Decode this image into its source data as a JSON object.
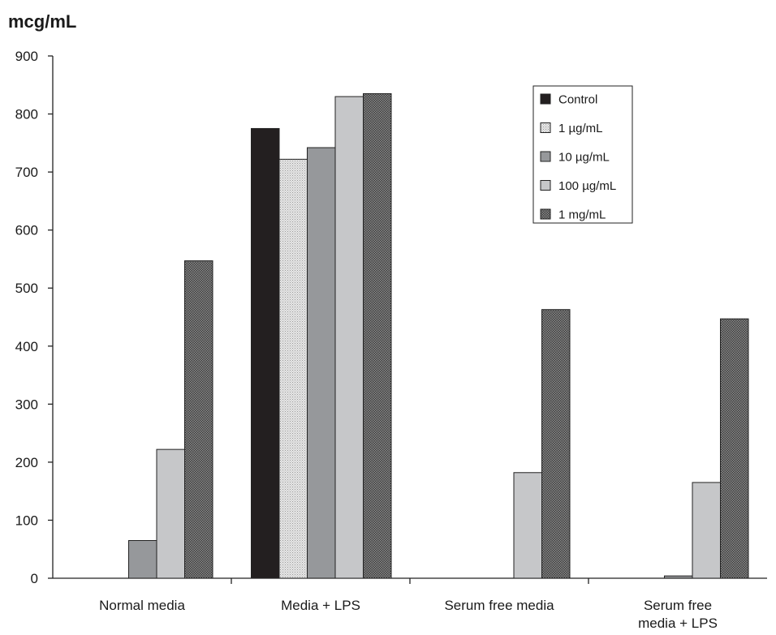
{
  "chart_data": {
    "type": "bar",
    "ylabel": "mcg/mL",
    "ylim": [
      0,
      900
    ],
    "yticks": [
      0,
      100,
      200,
      300,
      400,
      500,
      600,
      700,
      800,
      900
    ],
    "categories": [
      [
        "Normal media"
      ],
      [
        "Media + LPS"
      ],
      [
        "Serum free media"
      ],
      [
        "Serum free",
        "media + LPS"
      ]
    ],
    "series": [
      {
        "name": "Control",
        "color": "#231f20",
        "pattern": "solid",
        "values": [
          0,
          775,
          0,
          0
        ]
      },
      {
        "name": "1 µg/mL",
        "color": "#cfcfcf",
        "pattern": "dots",
        "values": [
          0,
          722,
          0,
          0
        ]
      },
      {
        "name": "10 µg/mL",
        "color": "#96989b",
        "pattern": "solid",
        "values": [
          65,
          742,
          0,
          4
        ]
      },
      {
        "name": "100 µg/mL",
        "color": "#c6c7c9",
        "pattern": "solid",
        "values": [
          222,
          830,
          182,
          165
        ]
      },
      {
        "name": "1 mg/mL",
        "color": "#565656",
        "pattern": "crosshatch",
        "values": [
          547,
          835,
          463,
          447
        ]
      }
    ],
    "legend_position": "top-right",
    "grid": false
  }
}
